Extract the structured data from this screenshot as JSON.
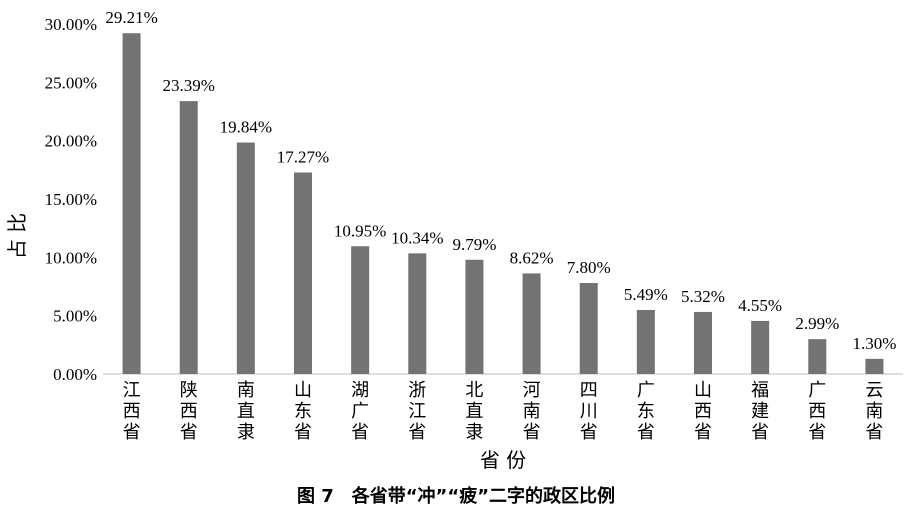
{
  "caption": "图 7　各省带“冲”“疲”二字的政区比例",
  "chart_data": {
    "type": "bar",
    "title": "",
    "ylabel": "占 比",
    "xlabel": "省 份",
    "ylim": [
      0,
      30
    ],
    "yticks": [
      "0.00%",
      "5.00%",
      "10.00%",
      "15.00%",
      "20.00%",
      "25.00%",
      "30.00%"
    ],
    "categories": [
      "江西省",
      "陕西省",
      "南直隶",
      "山东省",
      "湖广省",
      "浙江省",
      "北直隶",
      "河南省",
      "四川省",
      "广东省",
      "山西省",
      "福建省",
      "广西省",
      "云南省"
    ],
    "values": [
      29.21,
      23.39,
      19.84,
      17.27,
      10.95,
      10.34,
      9.79,
      8.62,
      7.8,
      5.49,
      5.32,
      4.55,
      2.99,
      1.3
    ],
    "data_labels": [
      "29.21%",
      "23.39%",
      "19.84%",
      "17.27%",
      "10.95%",
      "10.34%",
      "9.79%",
      "8.62%",
      "7.80%",
      "5.49%",
      "5.32%",
      "4.55%",
      "2.99%",
      "1.30%"
    ],
    "bar_color": "#737373",
    "grid": false
  }
}
